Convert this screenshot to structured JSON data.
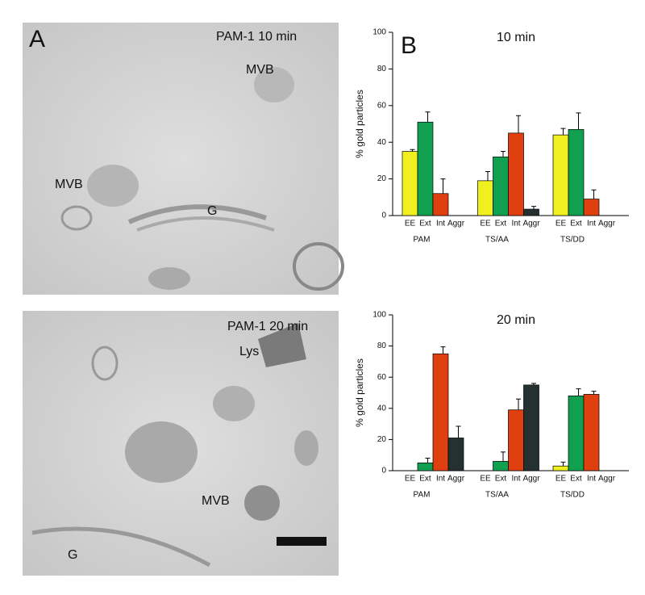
{
  "panel_a": {
    "label": "A",
    "images": [
      {
        "title": "PAM-1 10 min",
        "labels": [
          "MVB",
          "MVB",
          "G"
        ]
      },
      {
        "title": "PAM-1 20 min",
        "labels": [
          "Lys",
          "MVB",
          "G"
        ]
      }
    ]
  },
  "panel_b_label": "B",
  "chart_data": [
    {
      "type": "bar",
      "title": "10 min",
      "y_label": "% gold particles",
      "categories": [
        "PAM",
        "TS/AA",
        "TS/DD"
      ],
      "series": [
        {
          "name": "EE",
          "color": "#f0f020",
          "values": [
            35,
            19,
            44
          ],
          "errors": [
            1,
            5,
            3.5
          ]
        },
        {
          "name": "Ext",
          "color": "#10a050",
          "values": [
            51,
            32,
            47
          ],
          "errors": [
            5.5,
            3,
            9
          ]
        },
        {
          "name": "Int",
          "color": "#e04010",
          "values": [
            12,
            45,
            9
          ],
          "errors": [
            8,
            9.5,
            5
          ]
        },
        {
          "name": "Aggr",
          "color": "#253030",
          "values": [
            0,
            3.5,
            0
          ],
          "errors": [
            null,
            1.5,
            null
          ]
        }
      ],
      "ylim": [
        0,
        100
      ],
      "yticks": [
        0,
        20,
        40,
        60,
        80,
        100
      ]
    },
    {
      "type": "bar",
      "title": "20 min",
      "y_label": "% gold particles",
      "categories": [
        "PAM",
        "TS/AA",
        "TS/DD"
      ],
      "series": [
        {
          "name": "EE",
          "color": "#f0f020",
          "values": [
            0,
            0,
            3
          ],
          "errors": [
            null,
            null,
            2.5
          ]
        },
        {
          "name": "Ext",
          "color": "#10a050",
          "values": [
            5,
            6,
            48
          ],
          "errors": [
            3,
            6,
            4.5
          ]
        },
        {
          "name": "Int",
          "color": "#e04010",
          "values": [
            75,
            39,
            49
          ],
          "errors": [
            4.5,
            7,
            2
          ]
        },
        {
          "name": "Aggr",
          "color": "#253030",
          "values": [
            21,
            55,
            0
          ],
          "errors": [
            7.5,
            1,
            null
          ]
        }
      ],
      "ylim": [
        0,
        100
      ],
      "yticks": [
        0,
        20,
        40,
        60,
        80,
        100
      ]
    }
  ]
}
